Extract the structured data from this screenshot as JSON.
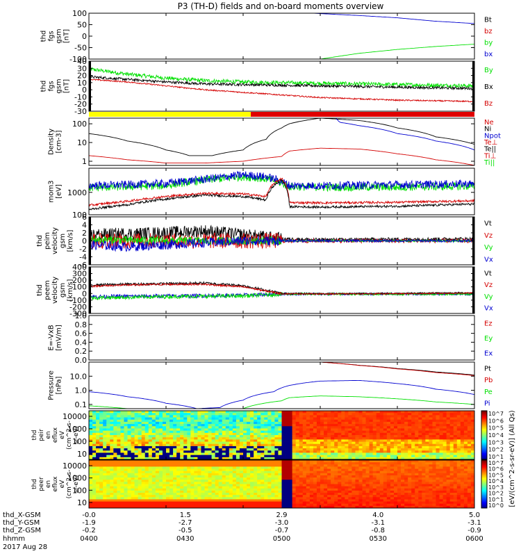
{
  "title": "P3 (TH-D) fields and on-board moments overview",
  "colors": {
    "black": "#000000",
    "red": "#d40000",
    "green": "#00e000",
    "blue": "#0000d0",
    "yellow": "#ffff00",
    "bar_red": "#e00000"
  },
  "chart_data": [
    {
      "type": "line",
      "ylabel": [
        "thd",
        "fgs",
        "gsm",
        "[nT]"
      ],
      "yticks": [
        "100",
        "50",
        "0",
        "-50",
        "-100"
      ],
      "ylim": [
        -100,
        100
      ],
      "legend": [
        {
          "name": "Bt",
          "color": "black"
        },
        {
          "name": "bz",
          "color": "red"
        },
        {
          "name": "by",
          "color": "green"
        },
        {
          "name": "bx",
          "color": "blue"
        }
      ],
      "series": [
        {
          "name": "bx",
          "color": "blue",
          "x": [
            2.9,
            3.5,
            4.0,
            4.5,
            5.0
          ],
          "y": [
            100,
            90,
            80,
            65,
            55
          ]
        },
        {
          "name": "by",
          "color": "green",
          "x": [
            3.0,
            3.5,
            4.0,
            4.5,
            5.0
          ],
          "y": [
            -100,
            -75,
            -58,
            -45,
            -35
          ]
        }
      ]
    },
    {
      "type": "line",
      "ylabel": [
        "thd",
        "fgs",
        "gsm",
        "[nT]"
      ],
      "yticks": [
        "40",
        "30",
        "20",
        "10",
        "0",
        "-10",
        "-20",
        "-30"
      ],
      "ylim": [
        -35,
        42
      ],
      "legend": [
        {
          "name": "By",
          "color": "green"
        },
        {
          "name": "Bx",
          "color": "black"
        },
        {
          "name": "Bz",
          "color": "red"
        }
      ],
      "series": [
        {
          "name": "By",
          "color": "green",
          "noise": 3,
          "x": [
            0,
            0.5,
            1.0,
            1.5,
            2.0,
            2.5,
            3.0,
            4.0,
            5.0
          ],
          "y": [
            30,
            22,
            16,
            12,
            10,
            9,
            8,
            6,
            4
          ]
        },
        {
          "name": "Bx",
          "color": "black",
          "noise": 2,
          "x": [
            0,
            0.5,
            1.0,
            1.5,
            2.0,
            2.5,
            3.0,
            4.0,
            5.0
          ],
          "y": [
            18,
            14,
            10,
            7,
            6,
            5,
            4,
            2,
            0
          ]
        },
        {
          "name": "Bz",
          "color": "red",
          "noise": 1,
          "x": [
            0,
            0.5,
            1.0,
            1.5,
            2.0,
            2.5,
            3.0,
            4.0,
            5.0
          ],
          "y": [
            14,
            10,
            4,
            -2,
            -6,
            -10,
            -14,
            -18,
            -20
          ]
        }
      ]
    },
    {
      "type": "line",
      "log": true,
      "ylabel": [
        "Density",
        "[cm-3]"
      ],
      "yticks": [
        "100",
        "10",
        "1"
      ],
      "ylim": [
        0.6,
        200
      ],
      "legend": [
        {
          "name": "Ne",
          "color": "red"
        },
        {
          "name": "Ni",
          "color": "black"
        },
        {
          "name": "Npot",
          "color": "blue"
        },
        {
          "name": "Te⊥",
          "color": "red"
        },
        {
          "name": "Te||",
          "color": "black"
        },
        {
          "name": "Ti⊥",
          "color": "red"
        },
        {
          "name": "Ti||",
          "color": "green"
        }
      ],
      "series": [
        {
          "name": "Ni",
          "color": "black",
          "x": [
            0,
            0.5,
            1.0,
            1.3,
            1.6,
            2.0,
            2.3,
            2.5,
            2.6,
            2.8,
            3.0,
            3.5,
            4.0,
            4.5,
            5.0
          ],
          "y": [
            30,
            12,
            4,
            2,
            2,
            4,
            15,
            60,
            100,
            150,
            200,
            150,
            60,
            20,
            8
          ]
        },
        {
          "name": "Npot",
          "color": "blue",
          "x": [
            3.2,
            3.25,
            3.5,
            4.0,
            4.5,
            5.0
          ],
          "y": [
            200,
            120,
            80,
            30,
            12,
            4
          ]
        },
        {
          "name": "Ne",
          "color": "red",
          "x": [
            0,
            0.5,
            1.0,
            1.5,
            2.0,
            2.5,
            2.6,
            3.0,
            3.5,
            4.0,
            4.5,
            5.0
          ],
          "y": [
            2,
            1.2,
            0.8,
            0.8,
            1,
            1.8,
            3.5,
            5,
            4.5,
            2.5,
            1.2,
            0.6
          ]
        }
      ]
    },
    {
      "type": "line",
      "log": true,
      "ylabel": [
        "mom3",
        "[eV]"
      ],
      "yticks": [
        "1000",
        "100"
      ],
      "ylim": [
        100,
        12000
      ],
      "series": [
        {
          "name": "Ti||",
          "color": "green",
          "noise": 0.18,
          "x": [
            0,
            0.5,
            1.0,
            1.5,
            2.0,
            2.3,
            2.6,
            3.0,
            4.0,
            5.0
          ],
          "y": [
            1600,
            1800,
            2000,
            3500,
            5000,
            4000,
            1800,
            1700,
            1700,
            1900
          ]
        },
        {
          "name": "Ti⊥",
          "color": "blue",
          "noise": 0.18,
          "x": [
            0,
            0.5,
            1.0,
            1.5,
            2.0,
            2.3,
            2.6,
            3.0,
            4.0,
            5.0
          ],
          "y": [
            2000,
            2200,
            2500,
            3800,
            6000,
            5000,
            2000,
            2000,
            2200,
            2400
          ]
        },
        {
          "name": "Te⊥",
          "color": "red",
          "noise": 0.05,
          "x": [
            0,
            0.5,
            1.0,
            1.5,
            2.0,
            2.3,
            2.5,
            2.6,
            3.0,
            4.0,
            5.0
          ],
          "y": [
            260,
            400,
            650,
            900,
            850,
            650,
            4200,
            350,
            340,
            360,
            420
          ]
        },
        {
          "name": "Te||",
          "color": "black",
          "noise": 0.05,
          "x": [
            0,
            0.5,
            1.0,
            1.5,
            2.0,
            2.3,
            2.5,
            2.6,
            3.0,
            4.0,
            5.0
          ],
          "y": [
            170,
            280,
            500,
            750,
            650,
            450,
            3500,
            230,
            220,
            240,
            300
          ]
        }
      ]
    },
    {
      "type": "line",
      "ylabel": [
        "thd",
        "peim",
        "velocity",
        "gsm",
        "[km/s]"
      ],
      "yticks": [
        "6",
        "4",
        "2",
        "0",
        "-2",
        "-4",
        "-6"
      ],
      "ylim": [
        -6,
        6
      ],
      "legend": [
        {
          "name": "Vt",
          "color": "black"
        },
        {
          "name": "Vz",
          "color": "red"
        },
        {
          "name": "Vy",
          "color": "green"
        },
        {
          "name": "Vx",
          "color": "blue"
        }
      ],
      "series": [
        {
          "name": "Vt",
          "color": "black",
          "noise": 1.6,
          "x": [
            0,
            1.0,
            1.5,
            2.0,
            2.5,
            3.0,
            4.0,
            5.0
          ],
          "y": [
            1.5,
            2,
            2.5,
            1.5,
            0.5,
            0.3,
            0.4,
            0.5
          ]
        },
        {
          "name": "Vz",
          "color": "red",
          "noise": 2.0,
          "x": [
            0,
            1.0,
            1.5,
            2.0,
            2.5,
            3.0,
            4.0,
            5.0
          ],
          "y": [
            0,
            0,
            0,
            0,
            0,
            0,
            0,
            0
          ]
        },
        {
          "name": "Vy",
          "color": "green",
          "noise": 1.0,
          "x": [
            0,
            1.0,
            2.0,
            2.5,
            3.0,
            4.0,
            5.0
          ],
          "y": [
            0.3,
            0,
            0,
            0,
            0,
            0,
            0
          ]
        },
        {
          "name": "Vx",
          "color": "blue",
          "noise": 1.2,
          "x": [
            0,
            0.5,
            1.0,
            1.5,
            2.0,
            2.5,
            3.0,
            5.0
          ],
          "y": [
            -1,
            -1.5,
            -1,
            -0.5,
            0,
            0,
            0,
            0
          ]
        }
      ]
    },
    {
      "type": "line",
      "ylabel": [
        "thd",
        "peem",
        "velocity",
        "gsm",
        "[km/s]"
      ],
      "yticks": [
        "400",
        "300",
        "200",
        "100",
        "0",
        "-100",
        "-200",
        "-300"
      ],
      "ylim": [
        -300,
        420
      ],
      "legend": [
        {
          "name": "Vt",
          "color": "black"
        },
        {
          "name": "Vz",
          "color": "red"
        },
        {
          "name": "Vy",
          "color": "green"
        },
        {
          "name": "Vx",
          "color": "blue"
        }
      ],
      "series": [
        {
          "name": "Vx",
          "color": "blue",
          "noise": 30,
          "x": [
            0,
            1.0,
            2.0,
            2.5,
            3.0,
            4.0,
            5.0
          ],
          "y": [
            -40,
            -30,
            -20,
            0,
            0,
            0,
            0
          ]
        },
        {
          "name": "Vy",
          "color": "green",
          "noise": 30,
          "x": [
            0,
            1.0,
            2.0,
            2.5,
            3.0,
            4.0,
            5.0
          ],
          "y": [
            -60,
            -40,
            -30,
            0,
            0,
            0,
            0
          ]
        },
        {
          "name": "Vt",
          "color": "black",
          "noise": 20,
          "x": [
            0,
            0.5,
            1.0,
            1.5,
            2.0,
            2.5,
            3.0,
            4.0,
            5.0
          ],
          "y": [
            140,
            150,
            160,
            170,
            130,
            10,
            5,
            10,
            20
          ]
        },
        {
          "name": "Vz",
          "color": "red",
          "noise": 15,
          "x": [
            0,
            0.5,
            1.0,
            1.5,
            2.0,
            2.5,
            3.0,
            4.0,
            5.0
          ],
          "y": [
            120,
            140,
            150,
            150,
            110,
            5,
            2,
            5,
            15
          ]
        }
      ]
    },
    {
      "type": "line",
      "ylabel": [
        "E=-VxB",
        "[mV/m]"
      ],
      "yticks": [
        "1.0",
        "0.8",
        "0.6",
        "0.4",
        "0.2",
        "0.0"
      ],
      "ylim": [
        0,
        1
      ],
      "legend": [
        {
          "name": "Ez",
          "color": "red"
        },
        {
          "name": "Ey",
          "color": "green"
        },
        {
          "name": "Ex",
          "color": "blue"
        }
      ],
      "series": []
    },
    {
      "type": "line",
      "log": true,
      "ylabel": [
        "Pressure",
        "[nPa]"
      ],
      "yticks": [
        "10.0",
        "1.0",
        "0.1"
      ],
      "ylim": [
        0.05,
        100
      ],
      "legend": [
        {
          "name": "Pt",
          "color": "black"
        },
        {
          "name": "Pb",
          "color": "red"
        },
        {
          "name": "Pe",
          "color": "green"
        },
        {
          "name": "Pi",
          "color": "blue"
        }
      ],
      "series": [
        {
          "name": "Pi",
          "color": "blue",
          "x": [
            0,
            0.5,
            1.0,
            1.4,
            1.7,
            2.0,
            2.4,
            2.6,
            3.0,
            3.5,
            4.0,
            4.5,
            5.0
          ],
          "y": [
            0.8,
            0.35,
            0.12,
            0.05,
            0.06,
            0.2,
            0.8,
            2.2,
            4.5,
            5,
            3,
            1.2,
            0.5
          ]
        },
        {
          "name": "Pe",
          "color": "green",
          "x": [
            0,
            0.5,
            1.0,
            1.5,
            2.0,
            2.5,
            2.6,
            3.0,
            3.5,
            4.0,
            4.5,
            5.0
          ],
          "y": [
            0.08,
            0.05,
            0.05,
            0.04,
            0.05,
            0.18,
            0.3,
            0.4,
            0.35,
            0.25,
            0.15,
            0.1
          ]
        },
        {
          "name": "Pt",
          "color": "black",
          "x": [
            3.0,
            3.5,
            4.0,
            4.5,
            5.0
          ],
          "y": [
            100,
            60,
            35,
            20,
            12
          ]
        },
        {
          "name": "Pb",
          "color": "red",
          "x": [
            3.0,
            3.5,
            4.0,
            4.5,
            5.0
          ],
          "y": [
            100,
            58,
            33,
            18,
            11
          ]
        }
      ]
    },
    {
      "type": "heatmap",
      "ylabel": [
        "thd",
        "peir",
        "en",
        "eflux",
        "eV",
        "(cm^2-s-",
        "sr-eV)"
      ],
      "yticks": [
        "10000",
        "1000",
        "100",
        "10"
      ]
    },
    {
      "type": "heatmap",
      "ylabel": [
        "thd",
        "peer",
        "en",
        "eflux",
        "eV",
        "(cm^2-s-",
        "sr-eV)"
      ],
      "yticks": [
        "10000",
        "1000",
        "100",
        "10"
      ]
    }
  ],
  "colorbar": {
    "label": "[eV/(cm^2-s-sr-eV)] (All Qs)",
    "upper_ticks": [
      "10^7",
      "10^6",
      "10^5",
      "10^4",
      "10^3",
      "10^2",
      "10^1"
    ],
    "lower_ticks": [
      "10^7",
      "10^6",
      "10^5",
      "10^4",
      "10^3",
      "10^2",
      "10^1",
      "10^0"
    ]
  },
  "xaxis": {
    "row_labels": [
      "thd_X-GSM",
      "thd_Y-GSM",
      "thd_Z-GSM",
      "hhmm",
      "2017 Aug 28"
    ],
    "columns": [
      {
        "x": "-0.0",
        "y": "-1.9",
        "z": "-0.2",
        "t": "0400"
      },
      {
        "x": "1.5",
        "y": "-2.7",
        "z": "-0.5",
        "t": "0430"
      },
      {
        "x": "2.9",
        "y": "-3.0",
        "z": "-0.7",
        "t": "0500"
      },
      {
        "x": "4.0",
        "y": "-3.1",
        "z": "-0.8",
        "t": "0530"
      },
      {
        "x": "5.0",
        "y": "-3.1",
        "z": "-0.9",
        "t": "0600"
      }
    ]
  }
}
